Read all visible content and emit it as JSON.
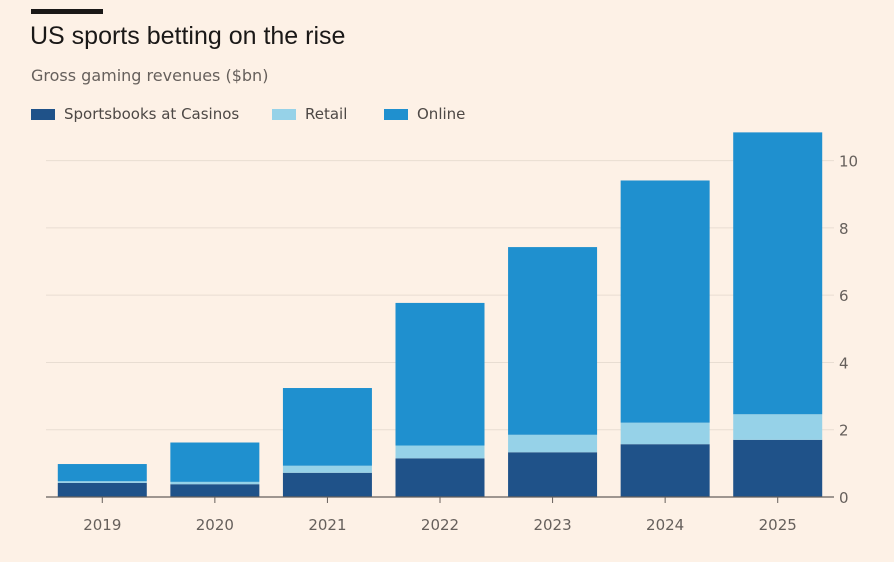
{
  "chart": {
    "title": "US sports betting on the rise",
    "subtitle": "Gross gaming revenues ($bn)"
  },
  "legend": {
    "casinos": "Sportsbooks at Casinos",
    "retail": "Retail",
    "online": "Online"
  },
  "colors": {
    "background": "#fdf1e6",
    "casinos": "#1f5289",
    "retail": "#96d2e8",
    "online": "#1f90cf",
    "grid": "#e8ddd2",
    "baseline": "#66605c"
  },
  "chart_data": {
    "type": "bar",
    "stacked": true,
    "title": "US sports betting on the rise",
    "subtitle": "Gross gaming revenues ($bn)",
    "categories": [
      "2019",
      "2020",
      "2021",
      "2022",
      "2023",
      "2024",
      "2025"
    ],
    "series": [
      {
        "name": "Sportsbooks at Casinos",
        "values": [
          0.42,
          0.38,
          0.72,
          1.15,
          1.33,
          1.57,
          1.7
        ]
      },
      {
        "name": "Retail",
        "values": [
          0.05,
          0.07,
          0.21,
          0.38,
          0.52,
          0.64,
          0.76
        ]
      },
      {
        "name": "Online",
        "values": [
          0.51,
          1.17,
          2.31,
          4.24,
          5.58,
          7.2,
          8.38
        ]
      }
    ],
    "ylim": [
      0,
      11
    ],
    "yticks": [
      0,
      2,
      4,
      6,
      8,
      10
    ],
    "y_axis_side": "right",
    "grid": true,
    "legend_position": "top-left"
  }
}
